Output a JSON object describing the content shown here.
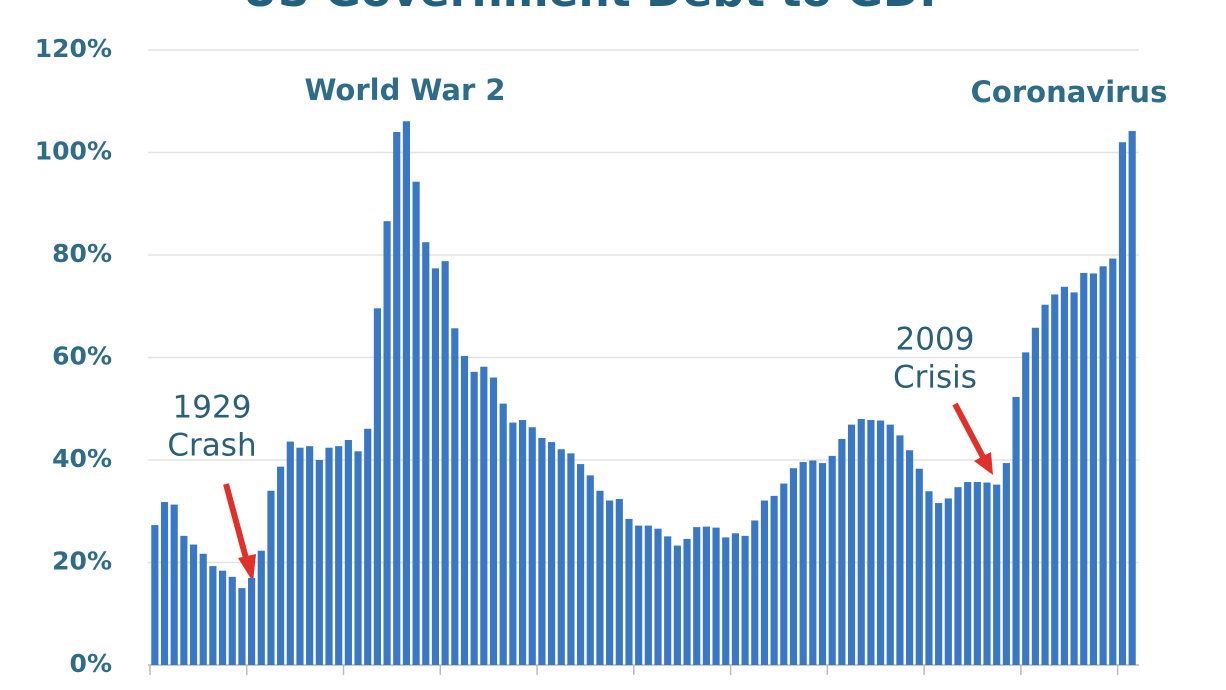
{
  "chart_data": {
    "type": "bar",
    "title": "US Government Debt to GDP",
    "color": "#3a78c4",
    "grid": true,
    "ylim": [
      0,
      120
    ],
    "yticks": [
      {
        "value": 0,
        "label": "0%"
      },
      {
        "value": 20,
        "label": "20%"
      },
      {
        "value": 40,
        "label": "40%"
      },
      {
        "value": 60,
        "label": "60%"
      },
      {
        "value": 80,
        "label": "80%"
      },
      {
        "value": 100,
        "label": "100%"
      },
      {
        "value": 120,
        "label": "120%"
      }
    ],
    "values": [
      27.3,
      31.8,
      31.3,
      25.2,
      23.5,
      21.7,
      19.3,
      18.4,
      17.2,
      15.0,
      17.0,
      22.3,
      34.0,
      38.7,
      43.6,
      42.4,
      42.7,
      40.0,
      42.4,
      42.7,
      43.9,
      41.7,
      46.1,
      69.6,
      86.6,
      104.0,
      106.1,
      94.3,
      82.5,
      77.4,
      78.8,
      65.7,
      60.3,
      57.2,
      58.2,
      56.1,
      51.0,
      47.3,
      47.8,
      46.4,
      44.3,
      43.5,
      42.1,
      41.3,
      39.2,
      37.0,
      34.0,
      32.1,
      32.4,
      28.5,
      27.2,
      27.2,
      26.6,
      25.1,
      23.3,
      24.6,
      26.9,
      27.0,
      26.8,
      24.9,
      25.7,
      25.2,
      28.2,
      32.1,
      33.0,
      35.4,
      38.4,
      39.6,
      39.9,
      39.4,
      40.8,
      44.1,
      46.9,
      48.0,
      47.8,
      47.7,
      46.9,
      44.8,
      41.9,
      38.3,
      33.9,
      31.6,
      32.5,
      34.7,
      35.7,
      35.7,
      35.6,
      35.2,
      39.4,
      52.3,
      61.0,
      65.8,
      70.3,
      72.3,
      73.8,
      72.7,
      76.5,
      76.4,
      77.8,
      79.3,
      102.0,
      104.2
    ],
    "annotations": [
      [
        "World War 2"
      ],
      [
        "Coronavirus"
      ],
      [
        "1929",
        "Crash"
      ],
      [
        "2009",
        "Crisis"
      ]
    ]
  }
}
